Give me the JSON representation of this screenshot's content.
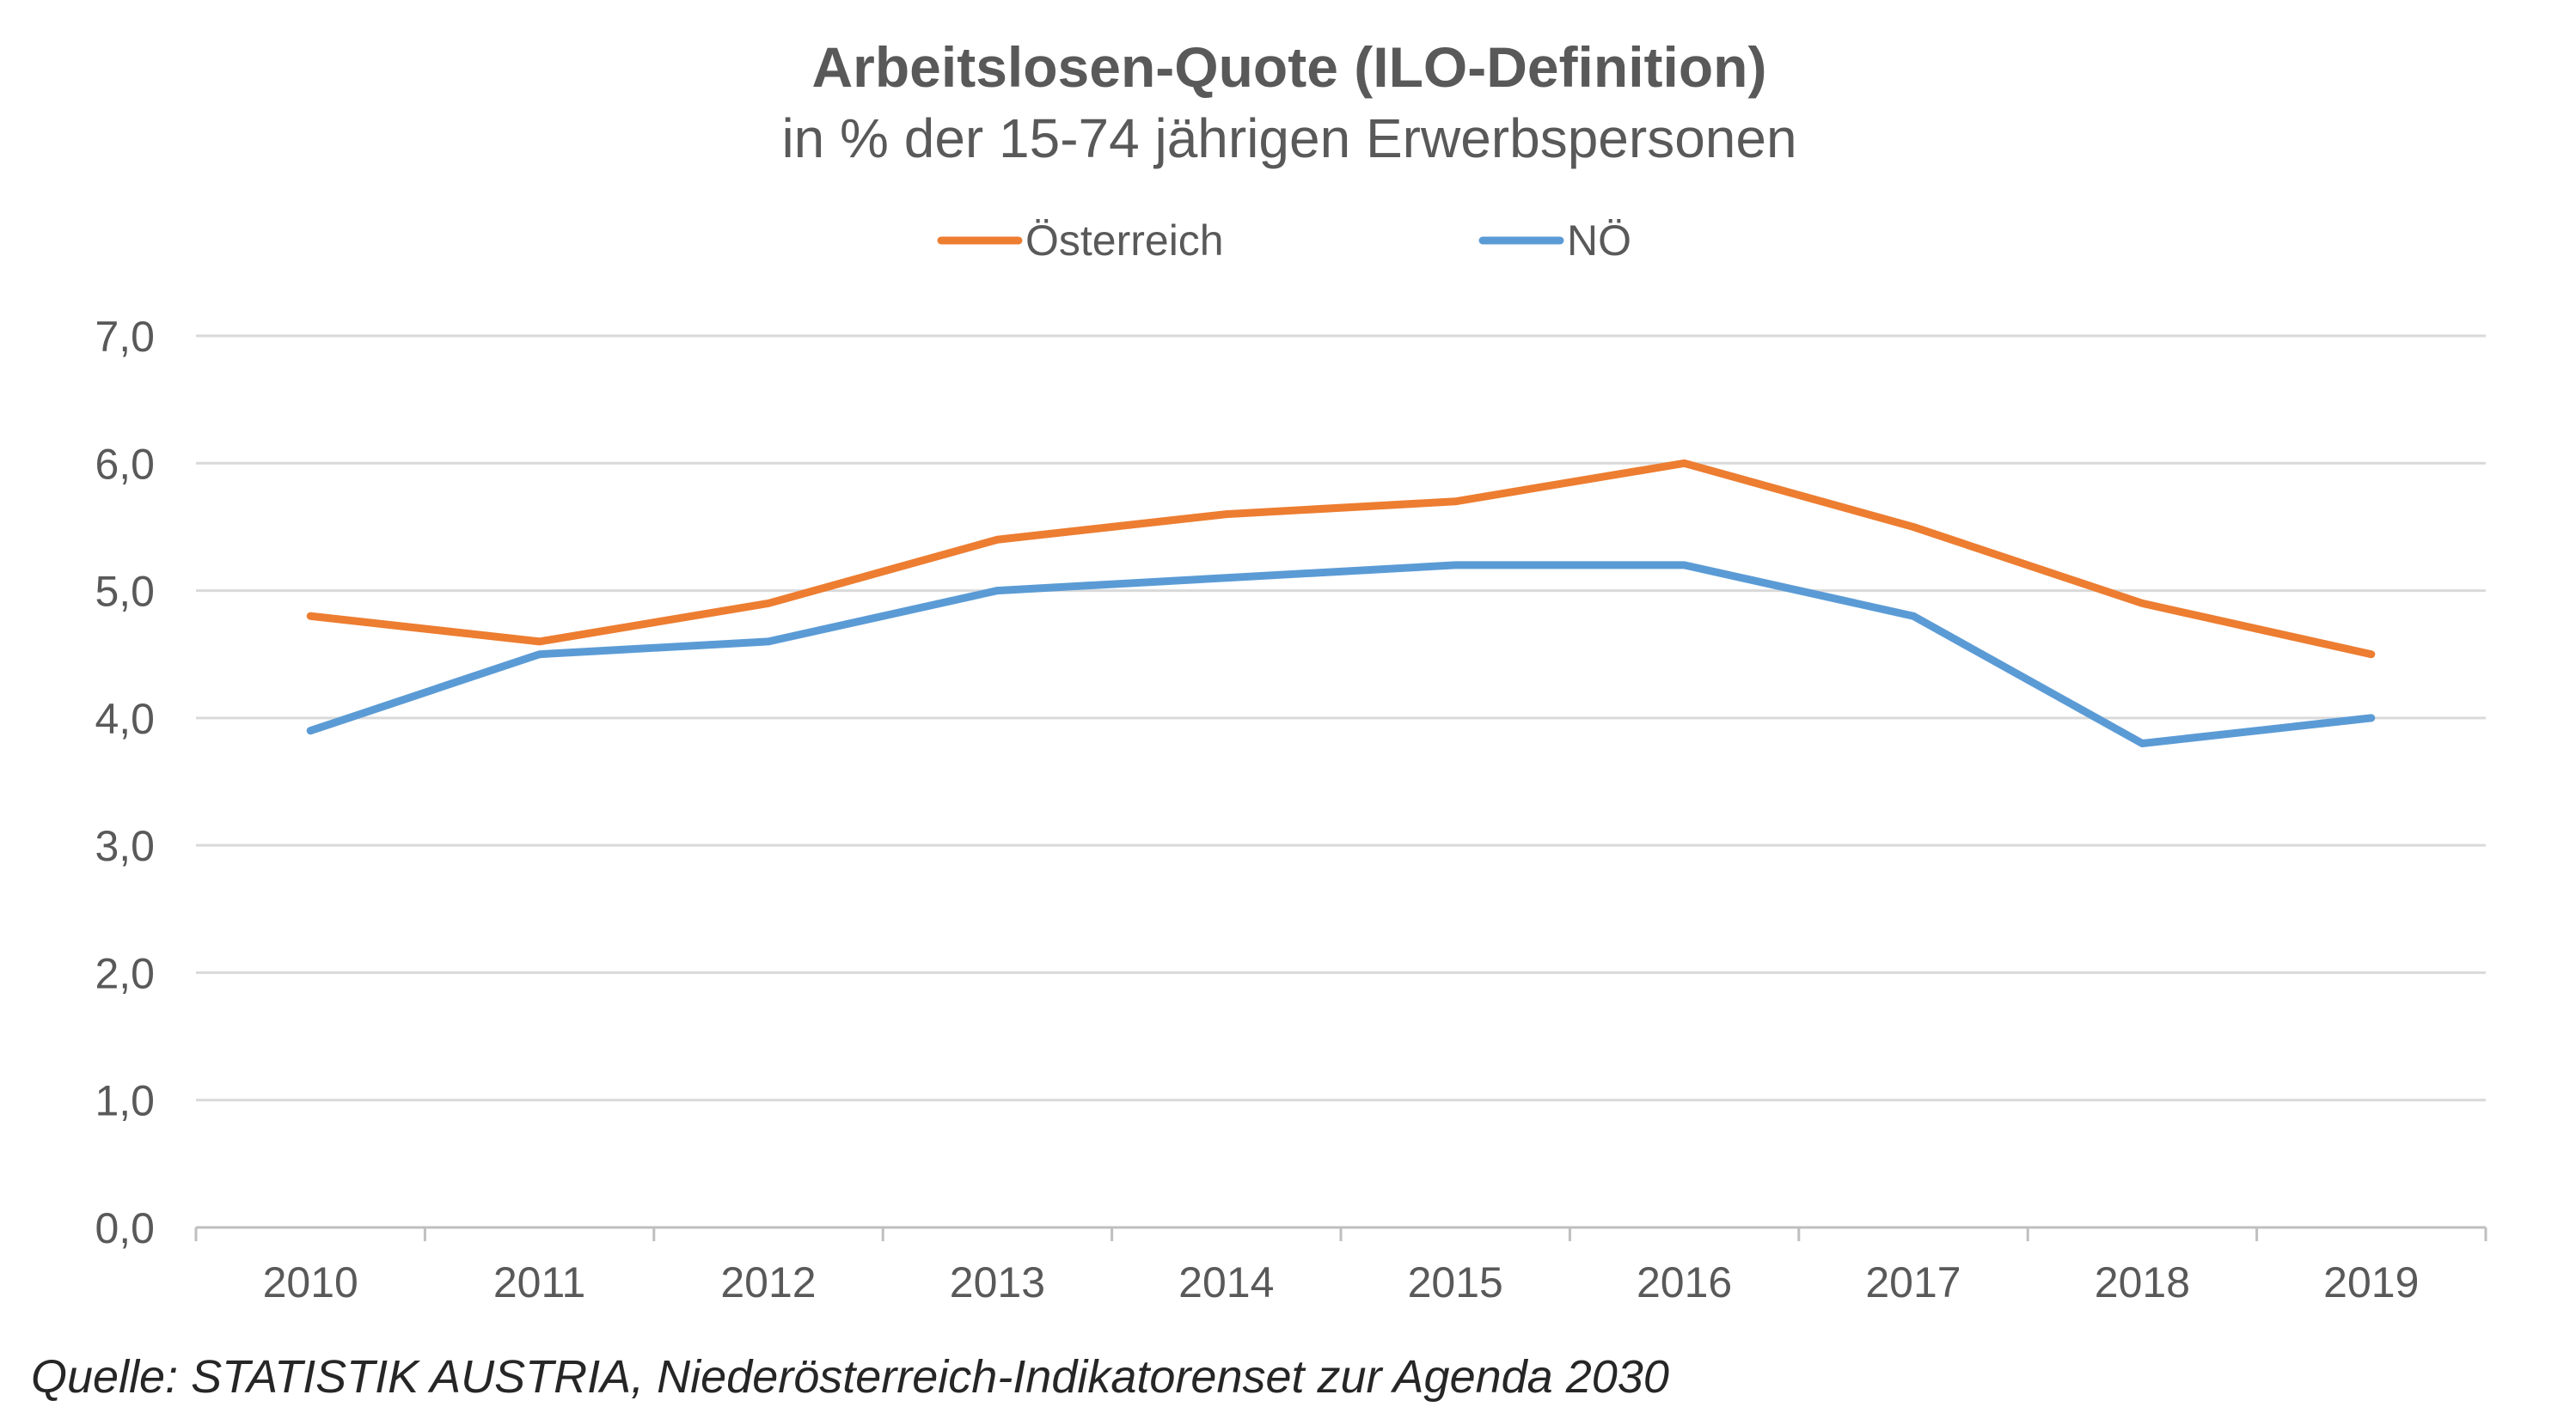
{
  "chart_data": {
    "type": "line",
    "title": "Arbeitslosen-Quote (ILO-Definition)",
    "subtitle": "in % der 15-74 jährigen Erwerbspersonen",
    "categories": [
      "2010",
      "2011",
      "2012",
      "2013",
      "2014",
      "2015",
      "2016",
      "2017",
      "2018",
      "2019"
    ],
    "series": [
      {
        "name": "Österreich",
        "color": "#ED7D31",
        "values": [
          4.8,
          4.6,
          4.9,
          5.4,
          5.6,
          5.7,
          6.0,
          5.5,
          4.9,
          4.5
        ]
      },
      {
        "name": "NÖ",
        "color": "#5B9BD5",
        "values": [
          3.9,
          4.5,
          4.6,
          5.0,
          5.1,
          5.2,
          5.2,
          4.8,
          3.8,
          4.0
        ]
      }
    ],
    "ylim": [
      0,
      7
    ],
    "yticks": [
      "0,0",
      "1,0",
      "2,0",
      "3,0",
      "4,0",
      "5,0",
      "6,0",
      "7,0"
    ],
    "grid": true,
    "legend": "top"
  },
  "source": "Quelle: STATISTIK AUSTRIA, Niederösterreich-Indikatorenset zur Agenda 2030"
}
